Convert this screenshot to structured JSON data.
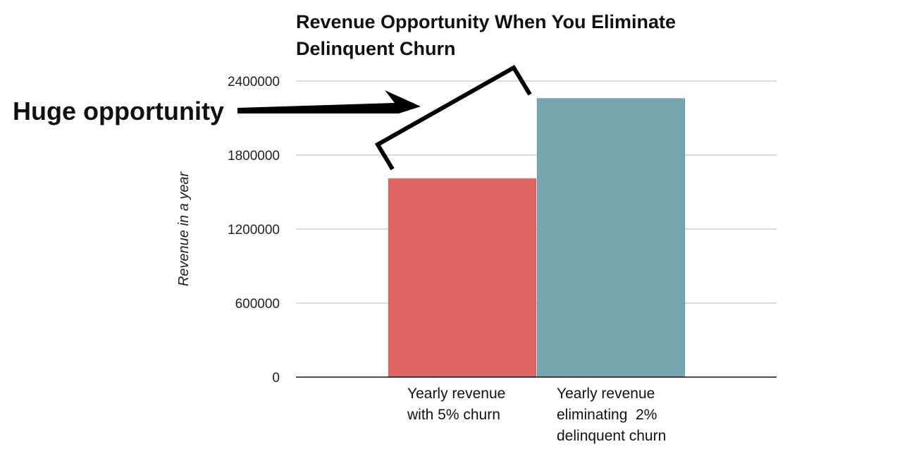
{
  "chart_data": {
    "type": "bar",
    "title": "Revenue Opportunity When You Eliminate Delinquent Churn",
    "title_lines": [
      "Revenue Opportunity When You Eliminate",
      "Delinquent Churn"
    ],
    "xlabel": "",
    "ylabel": "Revenue in a year",
    "ylim": [
      0,
      2400000
    ],
    "yticks": [
      0,
      600000,
      1200000,
      1800000,
      2400000
    ],
    "ytick_labels": [
      "0",
      "600000",
      "1200000",
      "1800000",
      "2400000"
    ],
    "grid": true,
    "legend": "none",
    "categories": [
      "Yearly revenue with 5% churn",
      "Yearly revenue eliminating 2% delinquent churn"
    ],
    "category_lines": [
      [
        "Yearly revenue",
        "with 5% churn"
      ],
      [
        "Yearly revenue",
        "eliminating  2%",
        "delinquent churn"
      ]
    ],
    "values": [
      1610000,
      2260000
    ],
    "colors": [
      "#e06666",
      "#76a5af"
    ],
    "annotation": "Huge opportunity"
  }
}
